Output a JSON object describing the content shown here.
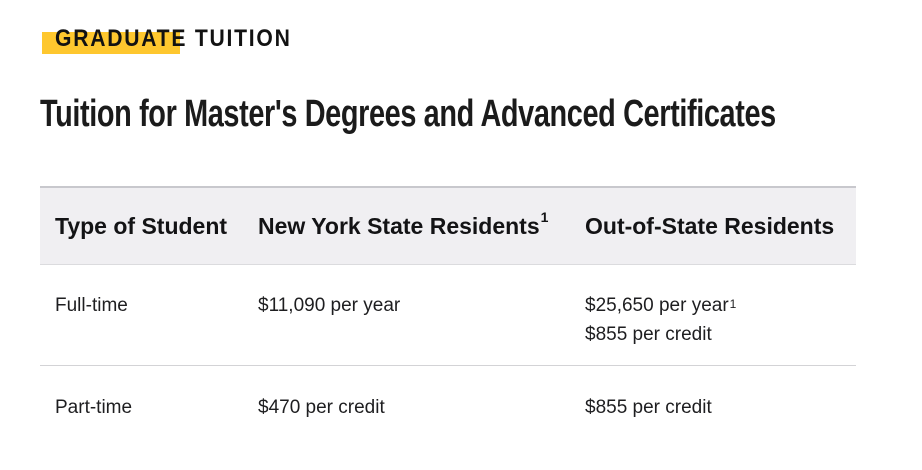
{
  "colors": {
    "accent": "#FEC72E",
    "header_bg": "#F0EFF2",
    "border_top": "#C8C8CD",
    "border_light": "#DBDBDE",
    "row_divider": "#D3D3D6",
    "text": "#1D1D1F"
  },
  "eyebrow": {
    "label": "GRADUATE TUITION"
  },
  "heading": {
    "title": "Tuition for Master's Degrees and Advanced Certificates"
  },
  "tuition_table": {
    "columns": [
      {
        "label": "Type of Student",
        "superscript": ""
      },
      {
        "label": "New York State Residents",
        "superscript": "1"
      },
      {
        "label": "Out-of-State Residents",
        "superscript": ""
      }
    ],
    "rows": [
      {
        "type": "Full-time",
        "nys_lines": [
          {
            "text": "$11,090 per year",
            "sup": ""
          }
        ],
        "oos_lines": [
          {
            "text": "$25,650 per year",
            "sup": "1"
          },
          {
            "text": "$855 per credit",
            "sup": ""
          }
        ]
      },
      {
        "type": "Part-time",
        "nys_lines": [
          {
            "text": "$470 per credit",
            "sup": ""
          }
        ],
        "oos_lines": [
          {
            "text": "$855 per credit",
            "sup": ""
          }
        ]
      }
    ]
  }
}
